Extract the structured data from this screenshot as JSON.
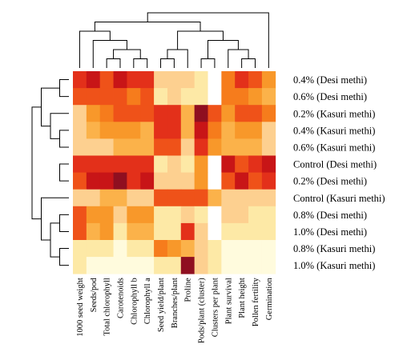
{
  "chart_data": {
    "type": "heatmap",
    "title": "",
    "xlabel": "",
    "ylabel": "",
    "color_scale": [
      "#fffbdd",
      "#fde9a6",
      "#fdd090",
      "#fbb24a",
      "#f8982a",
      "#f67c1c",
      "#ef5219",
      "#e3301a",
      "#c81517",
      "#8f0f20"
    ],
    "missing_color": "#ffffff",
    "columns": [
      "1000 seed weight",
      "Seeds/pod",
      "Total chlorophyll",
      "Carotenoids",
      "Chlorophyll b",
      "Chlorophyll a",
      "Seed yield/plant",
      "Branches/plant",
      "Proline",
      "Pods/plant (cluster)",
      "Clusters per plant",
      "Plant survival",
      "Plant height",
      "Pollen fertility",
      "Germination"
    ],
    "rows": [
      "0.4% (Desi methi)",
      "0.6% (Desi methi)",
      "0.2% (Kasuri methi)",
      "0.4% (Kasuri methi)",
      "0.6% (Kasuri methi)",
      "Control (Desi methi)",
      "0.2% (Desi methi)",
      "Control (Kasuri methi)",
      "0.8% (Desi methi)",
      "1.0% (Desi methi)",
      "0.8% (Kasuri methi)",
      "1.0% (Kasuri methi)"
    ],
    "values": [
      [
        7,
        8,
        6,
        8,
        7,
        7,
        2,
        2,
        2,
        1,
        null,
        5,
        7,
        6,
        4
      ],
      [
        6,
        6,
        6,
        6,
        5,
        6,
        1,
        2,
        1,
        1,
        null,
        5,
        5,
        4,
        3
      ],
      [
        2,
        4,
        5,
        6,
        6,
        6,
        7,
        7,
        3,
        9,
        6,
        4,
        6,
        6,
        5
      ],
      [
        2,
        3,
        4,
        4,
        4,
        3,
        7,
        7,
        3,
        8,
        5,
        3,
        4,
        4,
        2
      ],
      [
        2,
        2,
        2,
        3,
        3,
        3,
        6,
        6,
        2,
        7,
        4,
        3,
        3,
        3,
        2
      ],
      [
        7,
        7,
        7,
        7,
        7,
        7,
        1,
        2,
        1,
        4,
        null,
        8,
        6,
        7,
        8
      ],
      [
        6,
        8,
        8,
        9,
        7,
        8,
        2,
        2,
        2,
        4,
        null,
        6,
        8,
        6,
        7
      ],
      [
        2,
        2,
        3,
        3,
        2,
        2,
        6,
        6,
        6,
        6,
        3,
        2,
        2,
        2,
        2
      ],
      [
        6,
        4,
        4,
        2,
        4,
        4,
        1,
        1,
        2,
        1,
        null,
        2,
        2,
        1,
        1
      ],
      [
        6,
        3,
        4,
        1,
        3,
        3,
        1,
        1,
        7,
        2,
        null,
        1,
        1,
        1,
        1
      ],
      [
        1,
        1,
        1,
        0,
        1,
        1,
        5,
        4,
        3,
        2,
        1,
        0,
        0,
        0,
        0
      ],
      [
        1,
        0,
        0,
        0,
        0,
        0,
        1,
        1,
        9,
        2,
        1,
        0,
        0,
        0,
        0
      ]
    ],
    "row_dendrogram": [
      [
        0,
        1
      ],
      [
        5,
        6
      ],
      [
        13,
        14
      ],
      [
        3,
        4
      ],
      [
        2,
        15
      ],
      [
        16,
        12
      ],
      [
        8,
        9
      ],
      [
        10,
        11
      ],
      [
        18,
        19
      ],
      [
        7,
        20
      ],
      [
        21,
        17
      ]
    ],
    "col_dendrogram": [
      [
        4,
        5
      ],
      [
        2,
        3
      ],
      [
        16,
        15
      ],
      [
        1,
        17
      ],
      [
        0,
        18
      ],
      [
        12,
        13
      ],
      [
        11,
        20
      ],
      [
        6,
        7
      ],
      [
        22,
        8
      ],
      [
        9,
        10
      ],
      [
        21,
        24
      ],
      [
        23,
        25
      ],
      [
        19,
        26
      ],
      [
        14,
        27
      ]
    ],
    "legend": "none",
    "grid": false
  }
}
